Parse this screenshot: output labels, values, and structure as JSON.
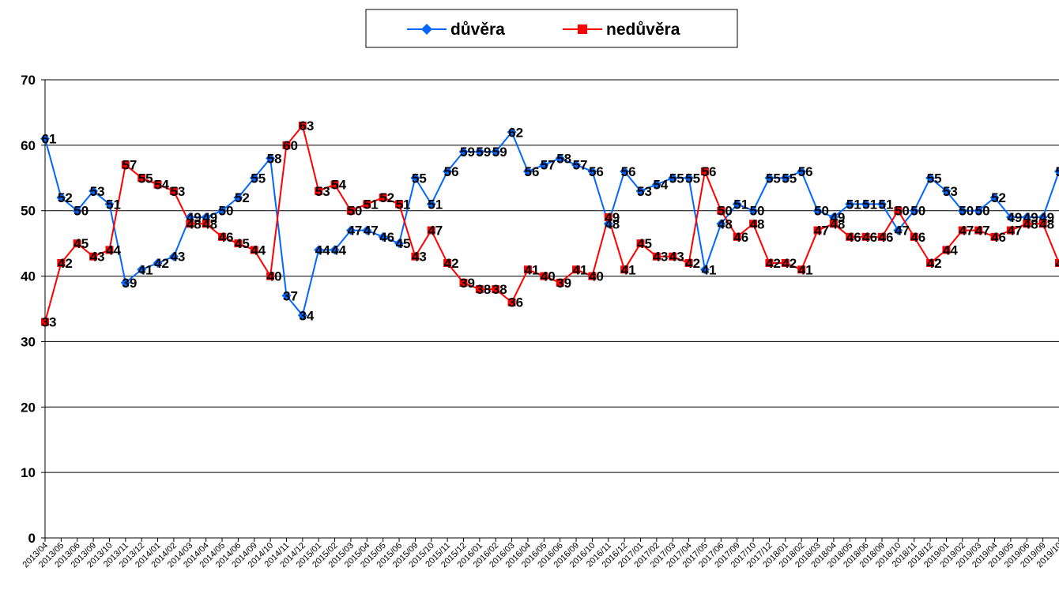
{
  "chart_data": {
    "type": "line",
    "categories": [
      "2013/04",
      "2013/05",
      "2013/06",
      "2013/09",
      "2013/10",
      "2013/11",
      "2013/12",
      "2014/01",
      "2014/02",
      "2014/03",
      "2014/04",
      "2014/05",
      "2014/06",
      "2014/09",
      "2014/10",
      "2014/11",
      "2014/12",
      "2015/01",
      "2015/02",
      "2015/03",
      "2015/04",
      "2015/05",
      "2015/06",
      "2015/09",
      "2015/10",
      "2015/11",
      "2015/12",
      "2016/01",
      "2016/02",
      "2016/03",
      "2016/04",
      "2016/05",
      "2016/06",
      "2016/09",
      "2016/10",
      "2016/11",
      "2016/12",
      "2017/01",
      "2017/02",
      "2017/03",
      "2017/04",
      "2017/05",
      "2017/06",
      "2017/09",
      "2017/10",
      "2017/12",
      "2018/01",
      "2018/02",
      "2018/03",
      "2018/04",
      "2018/05",
      "2018/06",
      "2018/09",
      "2018/10",
      "2018/11",
      "2018/12",
      "2019/01",
      "2019/02",
      "2019/03",
      "2019/04",
      "2019/05",
      "2019/06",
      "2019/09",
      "2019/10"
    ],
    "series": [
      {
        "name": "důvěra",
        "color": "#0066ff",
        "marker": "diamond",
        "values": [
          61,
          52,
          50,
          53,
          51,
          39,
          41,
          42,
          43,
          49,
          49,
          50,
          52,
          55,
          58,
          37,
          34,
          44,
          44,
          47,
          47,
          46,
          45,
          55,
          51,
          56,
          59,
          59,
          59,
          62,
          56,
          57,
          58,
          57,
          56,
          48,
          56,
          53,
          54,
          55,
          55,
          41,
          48,
          51,
          50,
          55,
          55,
          56,
          50,
          49,
          51,
          51,
          51,
          47,
          50,
          55,
          53,
          50,
          50,
          52,
          49,
          49,
          49,
          56
        ]
      },
      {
        "name": "nedůvěra",
        "color": "#ff0000",
        "marker": "square",
        "values": [
          33,
          42,
          45,
          43,
          44,
          57,
          55,
          54,
          53,
          48,
          48,
          46,
          45,
          44,
          40,
          60,
          63,
          53,
          54,
          50,
          51,
          52,
          51,
          43,
          47,
          42,
          39,
          38,
          38,
          36,
          41,
          40,
          39,
          41,
          40,
          49,
          41,
          45,
          43,
          43,
          42,
          56,
          50,
          46,
          48,
          42,
          42,
          41,
          47,
          48,
          46,
          46,
          46,
          50,
          46,
          42,
          44,
          47,
          47,
          46,
          47,
          48,
          48,
          42
        ]
      }
    ],
    "ylim": [
      0,
      70
    ],
    "yticks": [
      0,
      10,
      20,
      30,
      40,
      50,
      60,
      70
    ],
    "grid": true,
    "legend": "top",
    "data_labels": true
  }
}
